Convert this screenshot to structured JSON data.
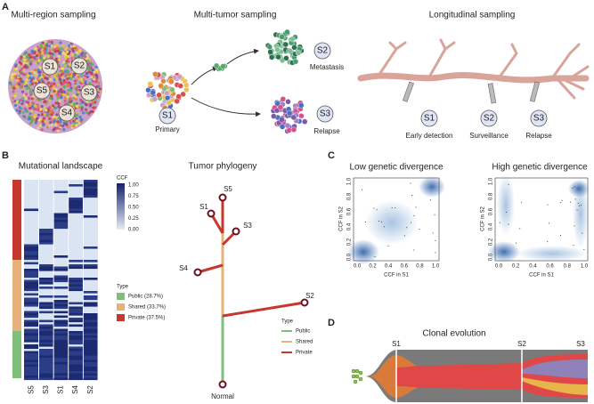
{
  "panels": {
    "A": {
      "letter": "A",
      "titles": [
        "Multi-region sampling",
        "Multi-tumor sampling",
        "Longitudinal sampling"
      ],
      "regions": [
        "S1",
        "S2",
        "S5",
        "S3",
        "S4"
      ],
      "tumor": {
        "samples": [
          "S1",
          "S2",
          "S3"
        ],
        "labels": [
          "Primary",
          "Metastasis",
          "Relapse"
        ]
      },
      "longitudinal": {
        "samples": [
          "S1",
          "S2",
          "S3"
        ],
        "labels": [
          "Early detection",
          "Surveillance",
          "Relapse"
        ]
      }
    },
    "B": {
      "letter": "B",
      "landscape_title": "Mutational landscape",
      "phylogeny_title": "Tumor phylogeny",
      "ccf_title": "CCF",
      "ccf_ticks": [
        "1.00",
        "0.75",
        "0.50",
        "0.25",
        "0.00"
      ],
      "type_title": "Type",
      "types": [
        "Public (28.7%)",
        "Shared (33.7%)",
        "Private (37.5%)"
      ],
      "samples": [
        "S5",
        "S3",
        "S1",
        "S4",
        "S2"
      ],
      "tree_nodes": [
        "S5",
        "S1",
        "S3",
        "S4",
        "S2",
        "Normal"
      ],
      "tree_legend_title": "Type",
      "tree_legend": [
        "Public",
        "Shared",
        "Private"
      ]
    },
    "C": {
      "letter": "C",
      "titles": [
        "Low genetic divergence",
        "High genetic divergence"
      ],
      "xlabel": "CCF in S1",
      "ylabel": "CCF in S2",
      "ticks": [
        "0.0",
        "0.2",
        "0.4",
        "0.6",
        "0.8",
        "1.0"
      ]
    },
    "D": {
      "letter": "D",
      "title": "Clonal evolution",
      "samples": [
        "S1",
        "S2",
        "S3"
      ]
    }
  }
}
